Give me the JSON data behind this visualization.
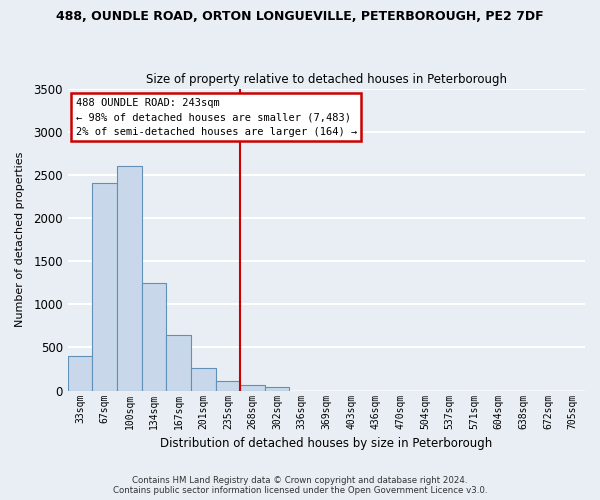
{
  "title_line1": "488, OUNDLE ROAD, ORTON LONGUEVILLE, PETERBOROUGH, PE2 7DF",
  "title_line2": "Size of property relative to detached houses in Peterborough",
  "xlabel": "Distribution of detached houses by size in Peterborough",
  "ylabel": "Number of detached properties",
  "bar_labels": [
    "33sqm",
    "67sqm",
    "100sqm",
    "134sqm",
    "167sqm",
    "201sqm",
    "235sqm",
    "268sqm",
    "302sqm",
    "336sqm",
    "369sqm",
    "403sqm",
    "436sqm",
    "470sqm",
    "504sqm",
    "537sqm",
    "571sqm",
    "604sqm",
    "638sqm",
    "672sqm",
    "705sqm"
  ],
  "bar_values": [
    400,
    2400,
    2600,
    1250,
    640,
    260,
    110,
    60,
    40,
    0,
    0,
    0,
    0,
    0,
    0,
    0,
    0,
    0,
    0,
    0,
    0
  ],
  "bar_color": "#c8d8ea",
  "bar_edge_color": "#6090b8",
  "ylim": [
    0,
    3500
  ],
  "yticks": [
    0,
    500,
    1000,
    1500,
    2000,
    2500,
    3000,
    3500
  ],
  "property_line_x": 6.5,
  "property_line_color": "#cc0000",
  "annotation_box_text": "488 OUNDLE ROAD: 243sqm\n← 98% of detached houses are smaller (7,483)\n2% of semi-detached houses are larger (164) →",
  "footer_line1": "Contains HM Land Registry data © Crown copyright and database right 2024.",
  "footer_line2": "Contains public sector information licensed under the Open Government Licence v3.0.",
  "background_color": "#e8eef4",
  "plot_bg_color": "#e8eef4",
  "grid_color": "#ffffff"
}
